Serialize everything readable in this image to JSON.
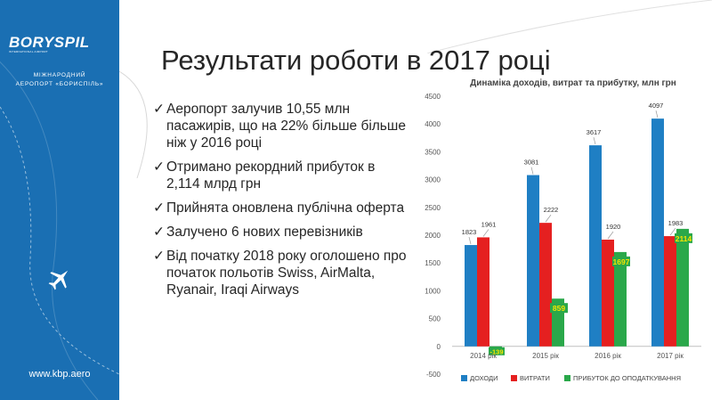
{
  "brand": {
    "logo": "BORYSPIL",
    "logo_tagline": "INTERNATIONAL AIRPORT",
    "subtitle_line1": "МІЖНАРОДНИЙ",
    "subtitle_line2": "АЕРОПОРТ «БОРИСПІЛЬ»",
    "website": "www.kbp.aero",
    "colors": {
      "sidebar": "#1a6fb3"
    },
    "icon": "airplane-icon"
  },
  "slide": {
    "title": "Результати роботи в 2017 році",
    "check_symbol": "✓",
    "bullets": [
      "Аеропорт залучив 10,55 млн пасажирів, що на 22% більше більше ніж у 2016 році",
      "Отримано рекордний прибуток в 2,114 млрд грн",
      "Прийнята оновлена публічна оферта",
      "Залучено 6 нових перевізників",
      "Від початку 2018 року оголошено про початок польотів Swiss, AirMalta, Ryanair, Iraqi Airways"
    ]
  },
  "chart_data": {
    "type": "bar",
    "title": "Динаміка доходів, витрат та прибутку, млн грн",
    "categories": [
      "2014 рік",
      "2015 рік",
      "2016 рік",
      "2017 рік"
    ],
    "series": [
      {
        "name": "ДОХОДИ",
        "values": [
          1823,
          3081,
          3617,
          4097
        ],
        "color": "#1f7fc4"
      },
      {
        "name": "ВИТРАТИ",
        "values": [
          1961,
          2222,
          1920,
          1983
        ],
        "color": "#e52020"
      },
      {
        "name": "ПРИБУТОК ДО ОПОДАТКУВАННЯ",
        "values": [
          -139,
          859,
          1697,
          2114
        ],
        "color": "#2aa84a"
      }
    ],
    "data_labels": [
      [
        "1823",
        "3081",
        "3617",
        "4097"
      ],
      [
        "1961",
        "2222",
        "1920",
        "1983"
      ],
      [
        "-139",
        "859",
        "1697",
        "2114"
      ]
    ],
    "yticks": [
      "-500",
      "0",
      "500",
      "1000",
      "1500",
      "2000",
      "2500",
      "3000",
      "3500",
      "4000",
      "4500"
    ],
    "ylim": [
      -500,
      4500
    ],
    "grid": false,
    "legend_position": "bottom"
  }
}
